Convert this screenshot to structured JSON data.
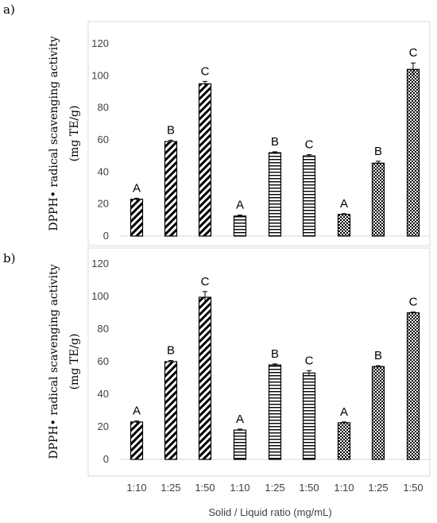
{
  "figure": {
    "ylabel_line1": "DPPH• radical scavenging activity",
    "ylabel_line2": "(mg TE/g)",
    "xlabel": "Solid / Liquid ratio (mg/mL)",
    "categories": [
      "1:10",
      "1:25",
      "1:50",
      "1:10",
      "1:25",
      "1:50",
      "1:10",
      "1:25",
      "1:50"
    ],
    "colors": {
      "axis_frame": "#d9d9d9",
      "gridline": "#d9d9d9",
      "bar_stroke": "#000000",
      "text": "#404040"
    }
  },
  "chart_data": [
    {
      "type": "bar",
      "panel": "a)",
      "categories": [
        "1:10",
        "1:25",
        "1:50",
        "1:10",
        "1:25",
        "1:50",
        "1:10",
        "1:25",
        "1:50"
      ],
      "values": [
        23,
        59,
        95,
        12.5,
        52,
        50,
        13.5,
        45.5,
        104
      ],
      "errors": [
        0.6,
        0.8,
        1.5,
        0.6,
        0.6,
        0.8,
        0.5,
        1.2,
        4
      ],
      "significance": [
        "A",
        "B",
        "C",
        "A",
        "B",
        "C",
        "A",
        "B",
        "C"
      ],
      "patterns": [
        "diagonal",
        "diagonal",
        "diagonal",
        "horizontal",
        "horizontal",
        "horizontal",
        "checker",
        "checker",
        "checker"
      ],
      "yticks": [
        "0",
        "20",
        "40",
        "60",
        "80",
        "100",
        "120"
      ],
      "ylim": [
        0,
        120
      ],
      "grid": false
    },
    {
      "type": "bar",
      "panel": "b)",
      "categories": [
        "1:10",
        "1:25",
        "1:50",
        "1:10",
        "1:25",
        "1:50",
        "1:10",
        "1:25",
        "1:50"
      ],
      "values": [
        23,
        60,
        99.5,
        18,
        58,
        53,
        22.5,
        57,
        90
      ],
      "errors": [
        0.6,
        0.7,
        3.5,
        0.6,
        0.6,
        1.5,
        0.5,
        0.5,
        0.5
      ],
      "significance": [
        "A",
        "B",
        "C",
        "A",
        "B",
        "C",
        "A",
        "B",
        "C"
      ],
      "patterns": [
        "diagonal",
        "diagonal",
        "diagonal",
        "horizontal",
        "horizontal",
        "horizontal",
        "checker",
        "checker",
        "checker"
      ],
      "yticks": [
        "0",
        "20",
        "40",
        "60",
        "80",
        "100",
        "120"
      ],
      "ylim": [
        0,
        120
      ],
      "grid": false
    }
  ]
}
